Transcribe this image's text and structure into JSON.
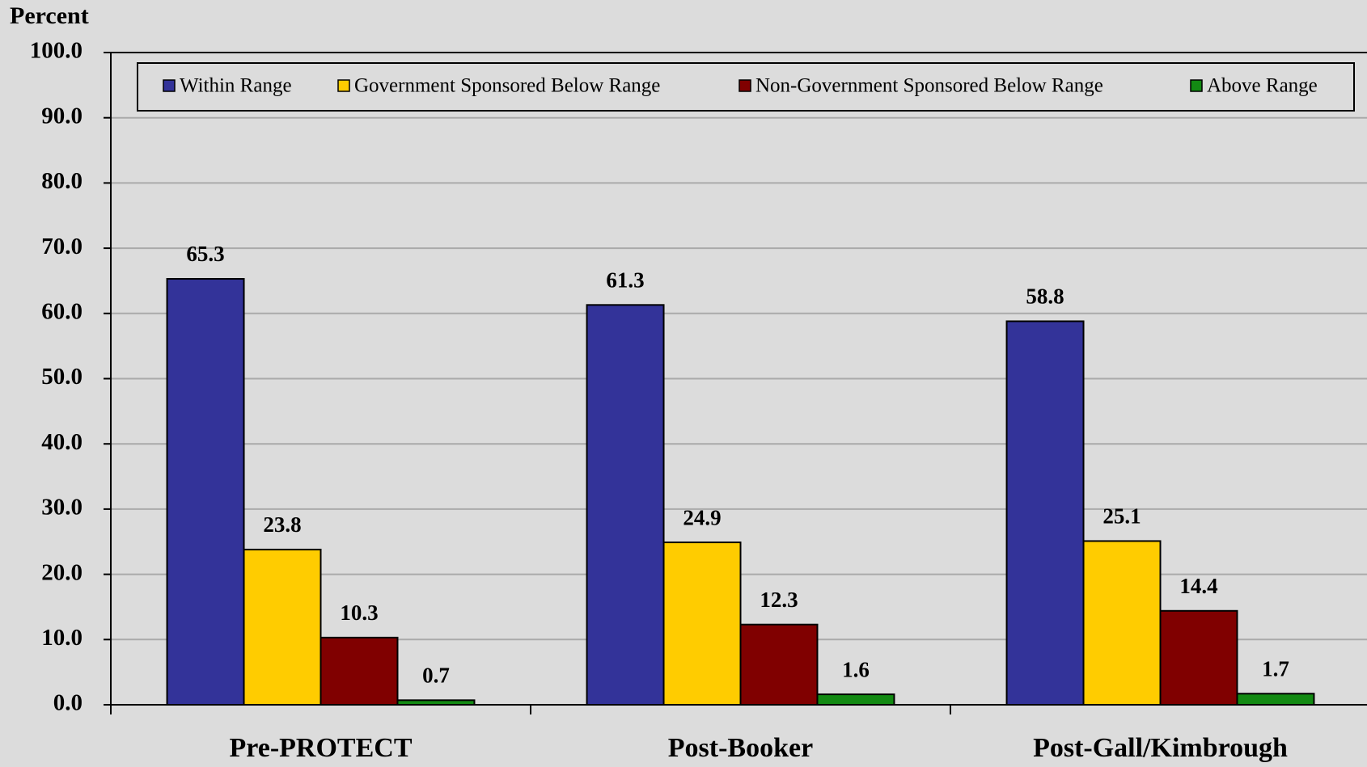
{
  "chart_data": {
    "type": "bar",
    "y_label": "Percent",
    "categories": [
      "Pre-PROTECT",
      "Post-Booker",
      "Post-Gall/Kimbrough"
    ],
    "series": [
      {
        "name": "Within Range",
        "color": "#333399",
        "values": [
          65.3,
          61.3,
          58.8
        ]
      },
      {
        "name": "Government Sponsored Below Range",
        "color": "#ffcc00",
        "values": [
          23.8,
          24.9,
          25.1
        ]
      },
      {
        "name": "Non-Government Sponsored Below Range",
        "color": "#800000",
        "values": [
          10.3,
          12.3,
          14.4
        ]
      },
      {
        "name": "Above Range",
        "color": "#138a13",
        "values": [
          0.7,
          1.6,
          1.7
        ]
      }
    ],
    "ylim": [
      0,
      100
    ],
    "yticks": [
      {
        "value": 0,
        "label": "0.0"
      },
      {
        "value": 10,
        "label": "10.0"
      },
      {
        "value": 20,
        "label": "20.0"
      },
      {
        "value": 30,
        "label": "30.0"
      },
      {
        "value": 40,
        "label": "40.0"
      },
      {
        "value": 50,
        "label": "50.0"
      },
      {
        "value": 60,
        "label": "60.0"
      },
      {
        "value": 70,
        "label": "70.0"
      },
      {
        "value": 80,
        "label": "80.0"
      },
      {
        "value": 90,
        "label": "90.0"
      },
      {
        "value": 100,
        "label": "100.0"
      }
    ],
    "grid": true,
    "legend": "top"
  }
}
